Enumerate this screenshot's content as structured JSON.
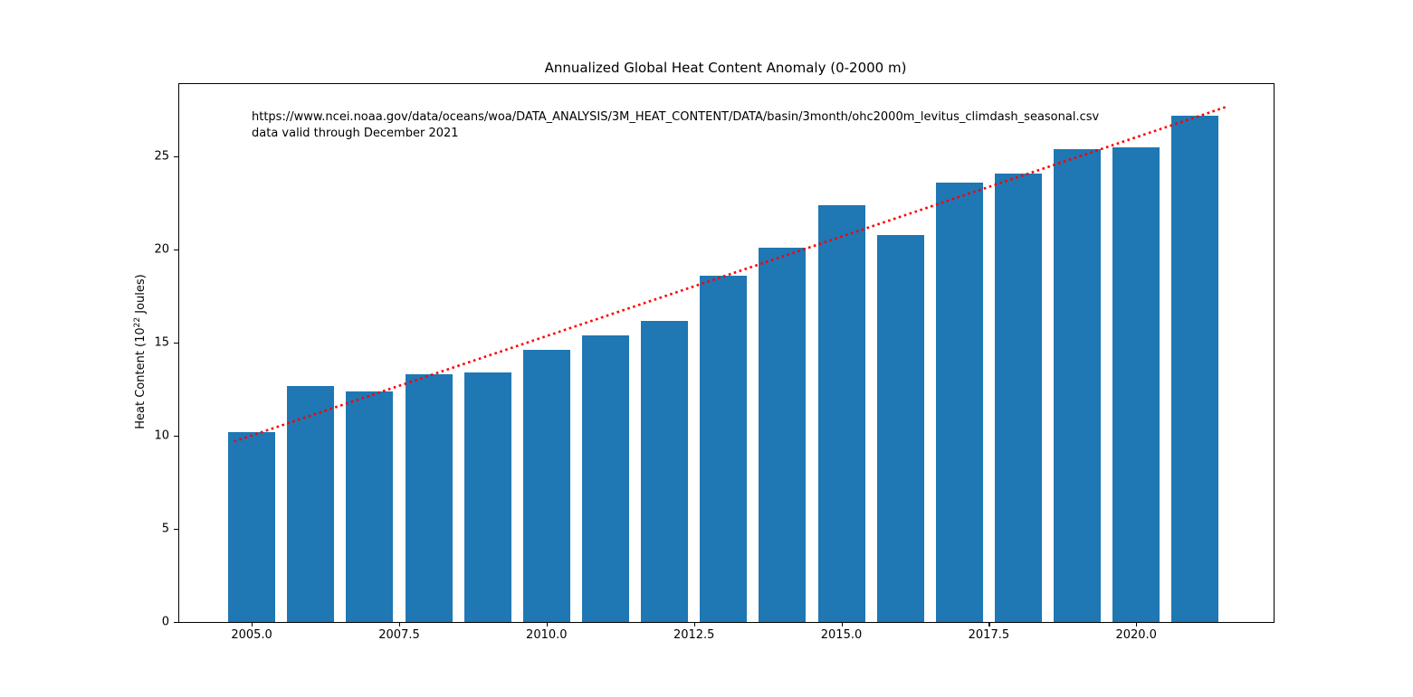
{
  "title": "Annualized Global Heat Content Anomaly (0-2000 m)",
  "annotation": {
    "line1": "https://www.ncei.noaa.gov/data/oceans/woa/DATA_ANALYSIS/3M_HEAT_CONTENT/DATA/basin/3month/ohc2000m_levitus_climdash_seasonal.csv",
    "line2": "data valid through December 2021"
  },
  "ylabel": {
    "prefix": "Heat Content (10",
    "superscript": "22",
    "suffix": " Joules)"
  },
  "chart_data": {
    "type": "bar",
    "title": "Annualized Global Heat Content Anomaly (0-2000 m)",
    "xlabel": "",
    "ylabel": "Heat Content (10^22 Joules)",
    "categories": [
      2005,
      2006,
      2007,
      2008,
      2009,
      2010,
      2011,
      2012,
      2013,
      2014,
      2015,
      2016,
      2017,
      2018,
      2019,
      2020,
      2021
    ],
    "values": [
      10.2,
      12.7,
      12.4,
      13.3,
      13.4,
      14.6,
      15.4,
      16.2,
      18.6,
      20.1,
      22.4,
      20.8,
      23.6,
      24.1,
      25.4,
      25.5,
      27.2
    ],
    "bar_width_years": 0.8,
    "bar_color": "#1f77b4",
    "trend_color": "#ff0000",
    "trend_style": "dotted",
    "trend_line": {
      "x_start": 2004.7,
      "y_start": 9.7,
      "x_end": 2021.55,
      "y_end": 27.7
    },
    "xlim": [
      2003.77,
      2022.33
    ],
    "ylim": [
      0,
      28.9
    ],
    "x_tick_values": [
      2005.0,
      2007.5,
      2010.0,
      2012.5,
      2015.0,
      2017.5,
      2020.0
    ],
    "x_tick_labels": [
      "2005.0",
      "2007.5",
      "2010.0",
      "2012.5",
      "2015.0",
      "2017.5",
      "2020.0"
    ],
    "y_tick_values": [
      0,
      5,
      10,
      15,
      20,
      25
    ],
    "y_tick_labels": [
      "0",
      "5",
      "10",
      "15",
      "20",
      "25"
    ],
    "grid": false,
    "legend": "none"
  }
}
